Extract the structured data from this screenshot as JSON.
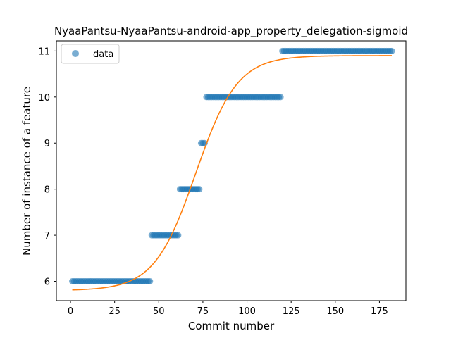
{
  "chart_data": {
    "type": "scatter",
    "title": "NyaaPantsu-NyaaPantsu-android-app_property_delegation-sigmoid",
    "xlabel": "Commit number",
    "ylabel": "Number of instance of a feature",
    "xlim": [
      -8,
      190
    ],
    "ylim": [
      5.58,
      11.22
    ],
    "xticks": [
      0,
      25,
      50,
      75,
      100,
      125,
      150,
      175
    ],
    "yticks": [
      6,
      7,
      8,
      9,
      10,
      11
    ],
    "grid": false,
    "legend": {
      "position": "top-left",
      "entries": [
        "data"
      ]
    },
    "series": [
      {
        "name": "data",
        "kind": "points",
        "color": "#1f77b4",
        "runs": [
          {
            "x_start": 1,
            "x_end": 45,
            "y": 6
          },
          {
            "x_start": 46,
            "x_end": 61,
            "y": 7
          },
          {
            "x_start": 62,
            "x_end": 73,
            "y": 8
          },
          {
            "x_start": 74,
            "x_end": 76,
            "y": 9
          },
          {
            "x_start": 77,
            "x_end": 119,
            "y": 10
          },
          {
            "x_start": 120,
            "x_end": 182,
            "y": 11
          }
        ]
      },
      {
        "kind": "sigmoid-fit",
        "color": "#ff7f0e",
        "x_range": [
          1,
          182
        ],
        "curve": {
          "lower": 5.8,
          "upper": 10.9,
          "midpoint": 71,
          "rate": 0.085
        }
      }
    ]
  }
}
